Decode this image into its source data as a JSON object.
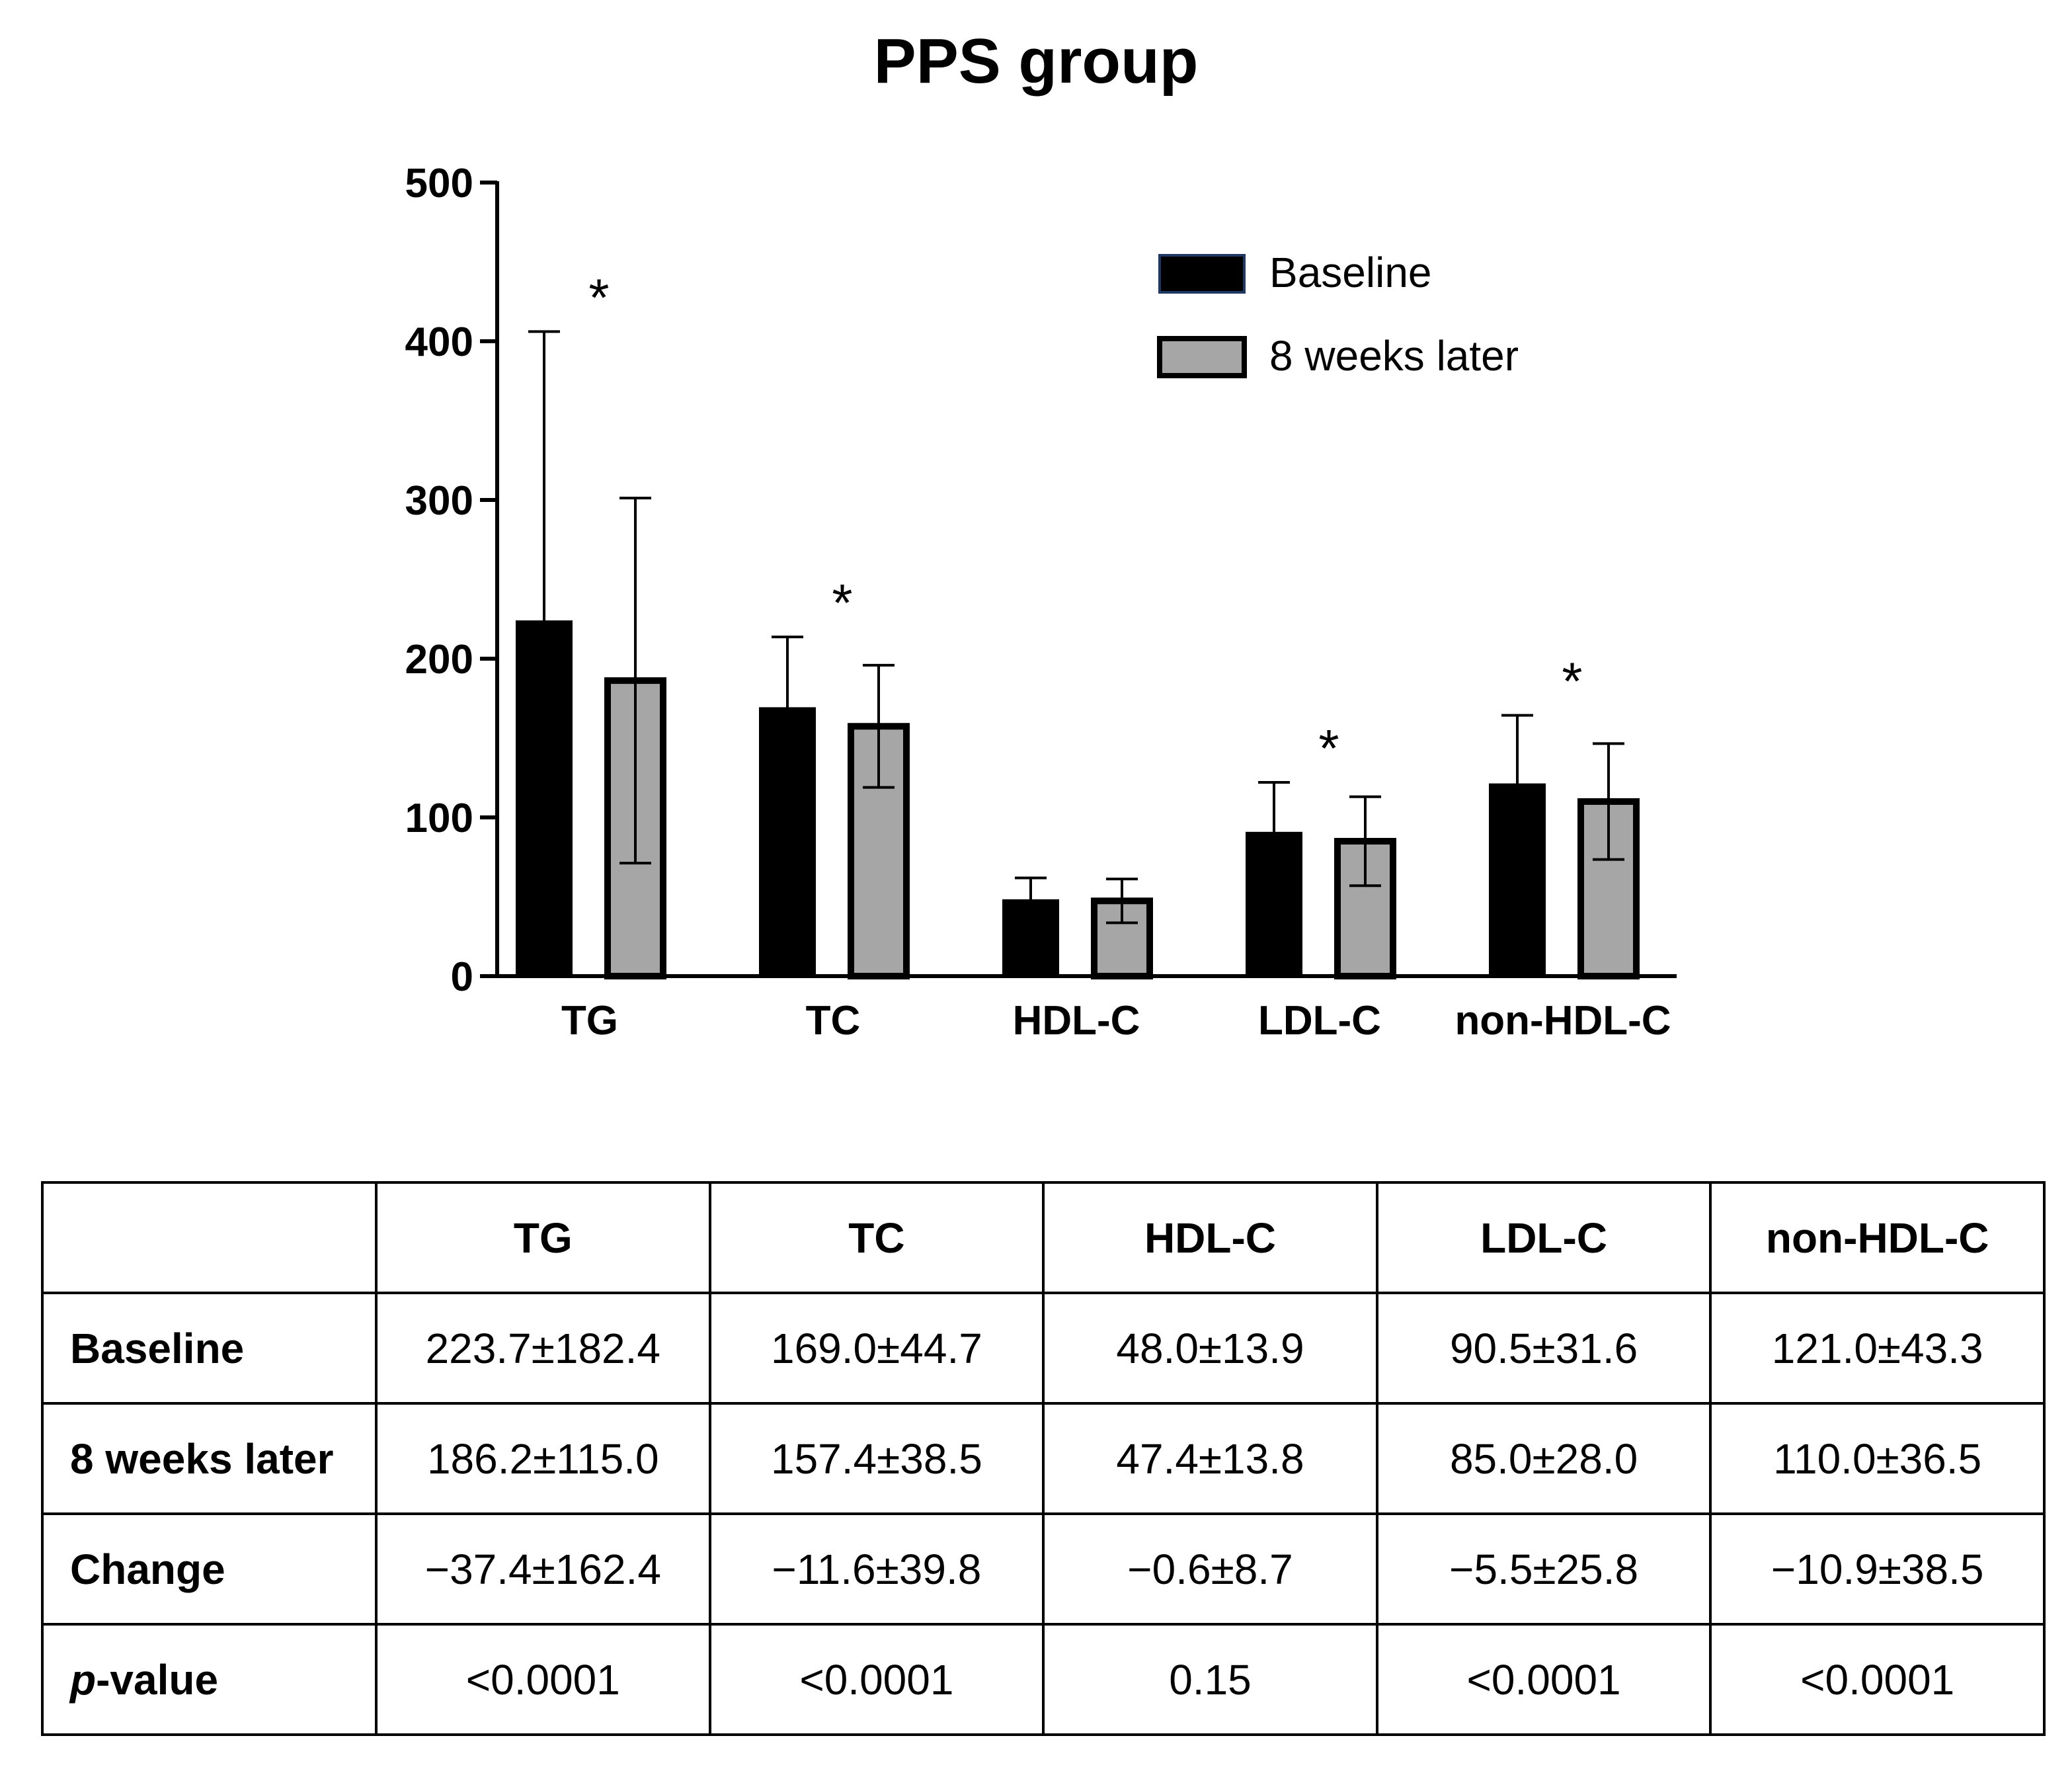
{
  "chart_data": {
    "type": "bar",
    "title": "PPS group",
    "xlabel": "",
    "ylabel": "",
    "categories": [
      "TG",
      "TC",
      "HDL-C",
      "LDL-C",
      "non-HDL-C"
    ],
    "ylim": [
      0,
      500
    ],
    "yticks": [
      "0",
      "100",
      "200",
      "300",
      "400",
      "500"
    ],
    "legend_position": "top-right",
    "grid": false,
    "series": [
      {
        "name": "Baseline",
        "color": "#000000",
        "values": [
          223.7,
          169.0,
          48.0,
          90.5,
          121.0
        ],
        "errors": [
          182.4,
          44.7,
          13.9,
          31.6,
          43.3
        ]
      },
      {
        "name": "8 weeks later",
        "color": "#a6a6a6",
        "values": [
          186.2,
          157.4,
          47.4,
          85.0,
          110.0
        ],
        "errors": [
          115.0,
          38.5,
          13.8,
          28.0,
          36.5
        ]
      }
    ],
    "significance_marker": "*",
    "significant": [
      true,
      true,
      false,
      true,
      true
    ]
  },
  "table": {
    "header": [
      "",
      "TG",
      "TC",
      "HDL-C",
      "LDL-C",
      "non-HDL-C"
    ],
    "rows": [
      {
        "label": "Baseline",
        "cells": [
          "223.7±182.4",
          "169.0±44.7",
          "48.0±13.9",
          "90.5±31.6",
          "121.0±43.3"
        ]
      },
      {
        "label": "8 weeks later",
        "cells": [
          "186.2±115.0",
          "157.4±38.5",
          "47.4±13.8",
          "85.0±28.0",
          "110.0±36.5"
        ]
      },
      {
        "label": "Change",
        "cells": [
          "−37.4±162.4",
          "−11.6±39.8",
          "−0.6±8.7",
          "−5.5±25.8",
          "−10.9±38.5"
        ]
      },
      {
        "label_italic": "p",
        "label_rest": "-value",
        "cells": [
          "<0.0001",
          "<0.0001",
          "0.15",
          "<0.0001",
          "<0.0001"
        ]
      }
    ]
  }
}
